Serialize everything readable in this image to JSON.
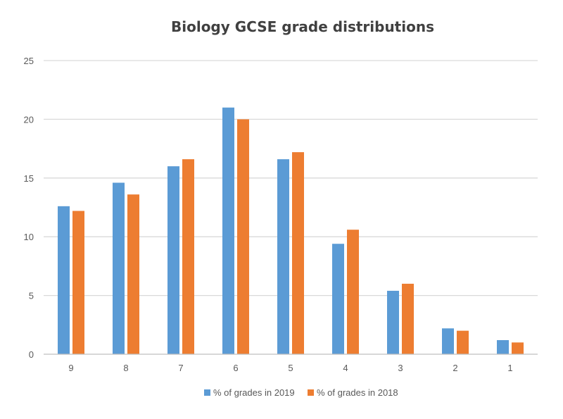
{
  "chart_data": {
    "type": "bar",
    "title": "Biology GCSE grade distributions",
    "xlabel": "",
    "ylabel": "",
    "categories": [
      "9",
      "8",
      "7",
      "6",
      "5",
      "4",
      "3",
      "2",
      "1"
    ],
    "series": [
      {
        "name": "% of grades in 2019",
        "color": "#5B9BD5",
        "values": [
          12.6,
          14.6,
          16.0,
          21.0,
          16.6,
          9.4,
          5.4,
          2.2,
          1.2
        ]
      },
      {
        "name": "% of grades in 2018",
        "color": "#ED7D31",
        "values": [
          12.2,
          13.6,
          16.6,
          20.0,
          17.2,
          10.6,
          6.0,
          2.0,
          1.0
        ]
      }
    ],
    "ylim": [
      0,
      25
    ],
    "yticks": [
      0,
      5,
      10,
      15,
      20,
      25
    ],
    "grid": true,
    "legend_position": "bottom"
  }
}
